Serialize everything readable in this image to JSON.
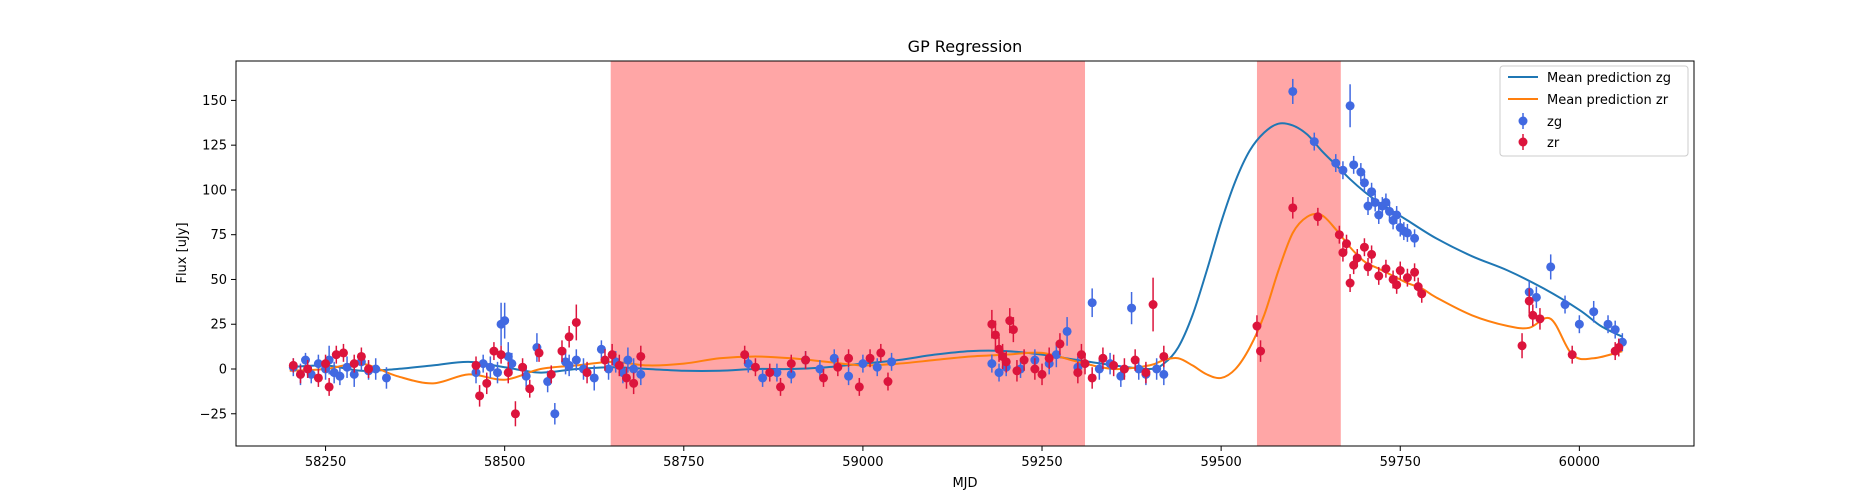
{
  "chart_data": {
    "type": "scatter",
    "title": "GP Regression",
    "xlabel": "MJD",
    "ylabel": "Flux [uJy]",
    "xlim": [
      58125,
      60160
    ],
    "ylim": [
      -43,
      172
    ],
    "xticks": [
      58250,
      58500,
      58750,
      59000,
      59250,
      59500,
      59750,
      60000
    ],
    "yticks": [
      -25,
      0,
      25,
      50,
      75,
      100,
      125,
      150
    ],
    "grid": false,
    "legend_position": "top-right",
    "shaded_regions": [
      {
        "x0": 58648,
        "x1": 59310,
        "color": "#ff0000",
        "alpha": 0.35
      },
      {
        "x0": 59550,
        "x1": 59667,
        "color": "#ff0000",
        "alpha": 0.35
      }
    ],
    "lines": [
      {
        "name": "Mean prediction zg",
        "color": "#1f77b4",
        "x": [
          58200,
          58250,
          58300,
          58350,
          58400,
          58450,
          58500,
          58550,
          58600,
          58650,
          58700,
          58750,
          58800,
          58850,
          58900,
          58950,
          59000,
          59050,
          59100,
          59150,
          59200,
          59250,
          59300,
          59350,
          59400,
          59420,
          59440,
          59460,
          59480,
          59500,
          59520,
          59540,
          59560,
          59580,
          59600,
          59620,
          59640,
          59660,
          59680,
          59700,
          59720,
          59740,
          59760,
          59800,
          59850,
          59900,
          59950,
          60000,
          60030,
          60060
        ],
        "y": [
          1,
          2,
          -1,
          0,
          2,
          4,
          1,
          -2,
          0,
          1,
          0,
          -1,
          -1,
          0,
          0,
          1,
          3,
          5,
          8,
          10,
          10,
          8,
          5,
          2,
          0,
          3,
          12,
          30,
          55,
          82,
          105,
          122,
          132,
          137,
          136,
          131,
          122,
          114,
          106,
          99,
          93,
          88,
          83,
          73,
          63,
          55,
          45,
          33,
          24,
          18
        ]
      },
      {
        "name": "Mean prediction zr",
        "color": "#ff7f0e",
        "x": [
          58200,
          58250,
          58300,
          58350,
          58400,
          58450,
          58500,
          58550,
          58600,
          58650,
          58700,
          58750,
          58800,
          58850,
          58900,
          58950,
          59000,
          59050,
          59100,
          59150,
          59200,
          59250,
          59300,
          59350,
          59400,
          59420,
          59440,
          59460,
          59480,
          59500,
          59520,
          59540,
          59560,
          59580,
          59600,
          59620,
          59640,
          59660,
          59680,
          59700,
          59720,
          59740,
          59760,
          59780,
          59800,
          59850,
          59900,
          59930,
          59960,
          59990,
          60020,
          60060
        ],
        "y": [
          -1,
          0,
          3,
          -4,
          -8,
          -3,
          -6,
          0,
          2,
          4,
          2,
          3,
          6,
          7,
          6,
          4,
          2,
          3,
          5,
          7,
          8,
          9,
          4,
          0,
          2,
          5,
          6,
          2,
          -3,
          -5,
          0,
          12,
          30,
          55,
          76,
          85,
          86,
          78,
          68,
          60,
          56,
          52,
          48,
          45,
          40,
          30,
          24,
          23,
          28,
          8,
          6,
          10
        ]
      }
    ],
    "series": [
      {
        "name": "zg",
        "color": "#4169e1",
        "x": [
          58205,
          58215,
          58222,
          58230,
          58240,
          58250,
          58255,
          58262,
          58270,
          58280,
          58290,
          58300,
          58310,
          58320,
          58335,
          58460,
          58470,
          58480,
          58490,
          58495,
          58500,
          58505,
          58510,
          58530,
          58545,
          58560,
          58570,
          58585,
          58590,
          58600,
          58610,
          58625,
          58635,
          58645,
          58655,
          58665,
          58672,
          58680,
          58690,
          58840,
          58860,
          58880,
          58900,
          58920,
          58940,
          58960,
          58980,
          59000,
          59020,
          59040,
          59180,
          59190,
          59200,
          59220,
          59240,
          59260,
          59270,
          59285,
          59300,
          59320,
          59330,
          59345,
          59360,
          59375,
          59385,
          59395,
          59410,
          59420,
          59600,
          59630,
          59660,
          59670,
          59680,
          59685,
          59695,
          59700,
          59705,
          59710,
          59715,
          59720,
          59725,
          59730,
          59735,
          59740,
          59745,
          59750,
          59755,
          59760,
          59770,
          59930,
          59940,
          59960,
          59980,
          60000,
          60020,
          60040,
          60050,
          60060
        ],
        "y": [
          1,
          -3,
          5,
          -3,
          3,
          0,
          5,
          -2,
          -4,
          1,
          -3,
          4,
          -1,
          0,
          -5,
          -2,
          3,
          1,
          -2,
          25,
          27,
          7,
          3,
          -4,
          12,
          -7,
          -25,
          4,
          2,
          5,
          0,
          -5,
          11,
          0,
          4,
          -2,
          5,
          0,
          -3,
          3,
          -5,
          -2,
          -3,
          5,
          0,
          6,
          -4,
          3,
          1,
          4,
          3,
          -2,
          1,
          0,
          5,
          3,
          8,
          21,
          1,
          37,
          0,
          3,
          -4,
          34,
          0,
          -3,
          0,
          -3,
          155,
          127,
          115,
          111,
          147,
          114,
          110,
          104,
          91,
          99,
          93,
          86,
          91,
          93,
          88,
          83,
          86,
          79,
          77,
          76,
          73,
          43,
          40,
          57,
          36,
          25,
          32,
          25,
          22,
          15
        ],
        "err": [
          5,
          6,
          4,
          5,
          5,
          6,
          8,
          6,
          5,
          6,
          7,
          5,
          5,
          6,
          6,
          6,
          5,
          6,
          6,
          12,
          10,
          8,
          6,
          6,
          8,
          6,
          6,
          7,
          6,
          6,
          6,
          7,
          5,
          6,
          6,
          6,
          7,
          6,
          6,
          5,
          5,
          5,
          5,
          5,
          5,
          5,
          5,
          5,
          5,
          5,
          5,
          5,
          5,
          5,
          6,
          6,
          7,
          8,
          6,
          8,
          6,
          6,
          6,
          9,
          6,
          6,
          6,
          6,
          7,
          5,
          5,
          5,
          12,
          5,
          5,
          5,
          5,
          5,
          5,
          5,
          5,
          5,
          5,
          5,
          5,
          5,
          5,
          5,
          5,
          6,
          6,
          7,
          5,
          5,
          6,
          5,
          5,
          5
        ]
      },
      {
        "name": "zr",
        "color": "#dc143c",
        "x": [
          58205,
          58215,
          58225,
          58240,
          58250,
          58255,
          58265,
          58275,
          58290,
          58300,
          58310,
          58460,
          58465,
          58475,
          58485,
          58495,
          58505,
          58515,
          58525,
          58535,
          58548,
          58565,
          58580,
          58590,
          58600,
          58615,
          58640,
          58650,
          58660,
          58670,
          58680,
          58690,
          58835,
          58850,
          58870,
          58885,
          58900,
          58920,
          58945,
          58965,
          58980,
          58995,
          59010,
          59025,
          59035,
          59180,
          59185,
          59190,
          59195,
          59200,
          59205,
          59210,
          59215,
          59225,
          59240,
          59250,
          59260,
          59275,
          59300,
          59305,
          59310,
          59320,
          59335,
          59350,
          59365,
          59380,
          59395,
          59405,
          59420,
          59550,
          59555,
          59600,
          59635,
          59665,
          59670,
          59675,
          59680,
          59685,
          59690,
          59700,
          59705,
          59710,
          59720,
          59730,
          59740,
          59745,
          59750,
          59760,
          59770,
          59775,
          59780,
          59920,
          59930,
          59935,
          59945,
          59990,
          60050,
          60055
        ],
        "y": [
          2,
          -3,
          0,
          -5,
          3,
          -10,
          8,
          9,
          3,
          7,
          0,
          2,
          -15,
          -8,
          10,
          8,
          -2,
          -25,
          1,
          -11,
          9,
          -3,
          10,
          18,
          26,
          -2,
          5,
          8,
          2,
          -5,
          -8,
          7,
          8,
          1,
          -2,
          -10,
          3,
          5,
          -5,
          1,
          6,
          -10,
          6,
          9,
          -7,
          25,
          19,
          11,
          7,
          4,
          27,
          22,
          -1,
          5,
          0,
          -3,
          6,
          14,
          -2,
          8,
          3,
          -5,
          6,
          2,
          0,
          5,
          -2,
          36,
          7,
          24,
          10,
          90,
          85,
          75,
          65,
          70,
          48,
          58,
          62,
          68,
          57,
          64,
          52,
          56,
          50,
          47,
          55,
          51,
          54,
          46,
          42,
          13,
          38,
          30,
          28,
          8,
          10,
          12
        ],
        "err": [
          4,
          5,
          5,
          5,
          5,
          5,
          5,
          5,
          5,
          5,
          5,
          5,
          6,
          6,
          5,
          5,
          6,
          7,
          5,
          5,
          5,
          5,
          6,
          6,
          10,
          6,
          6,
          6,
          6,
          6,
          6,
          6,
          5,
          5,
          5,
          5,
          5,
          5,
          5,
          5,
          5,
          5,
          5,
          5,
          5,
          8,
          8,
          7,
          7,
          6,
          7,
          7,
          6,
          6,
          6,
          6,
          6,
          6,
          6,
          6,
          6,
          6,
          6,
          6,
          6,
          6,
          6,
          15,
          6,
          6,
          6,
          6,
          5,
          5,
          5,
          5,
          5,
          5,
          5,
          5,
          5,
          5,
          5,
          5,
          5,
          5,
          5,
          5,
          5,
          5,
          5,
          7,
          7,
          6,
          6,
          5,
          5,
          5
        ]
      }
    ],
    "legend_entries": [
      "Mean prediction zg",
      "Mean prediction zr",
      "zg",
      "zr"
    ]
  }
}
